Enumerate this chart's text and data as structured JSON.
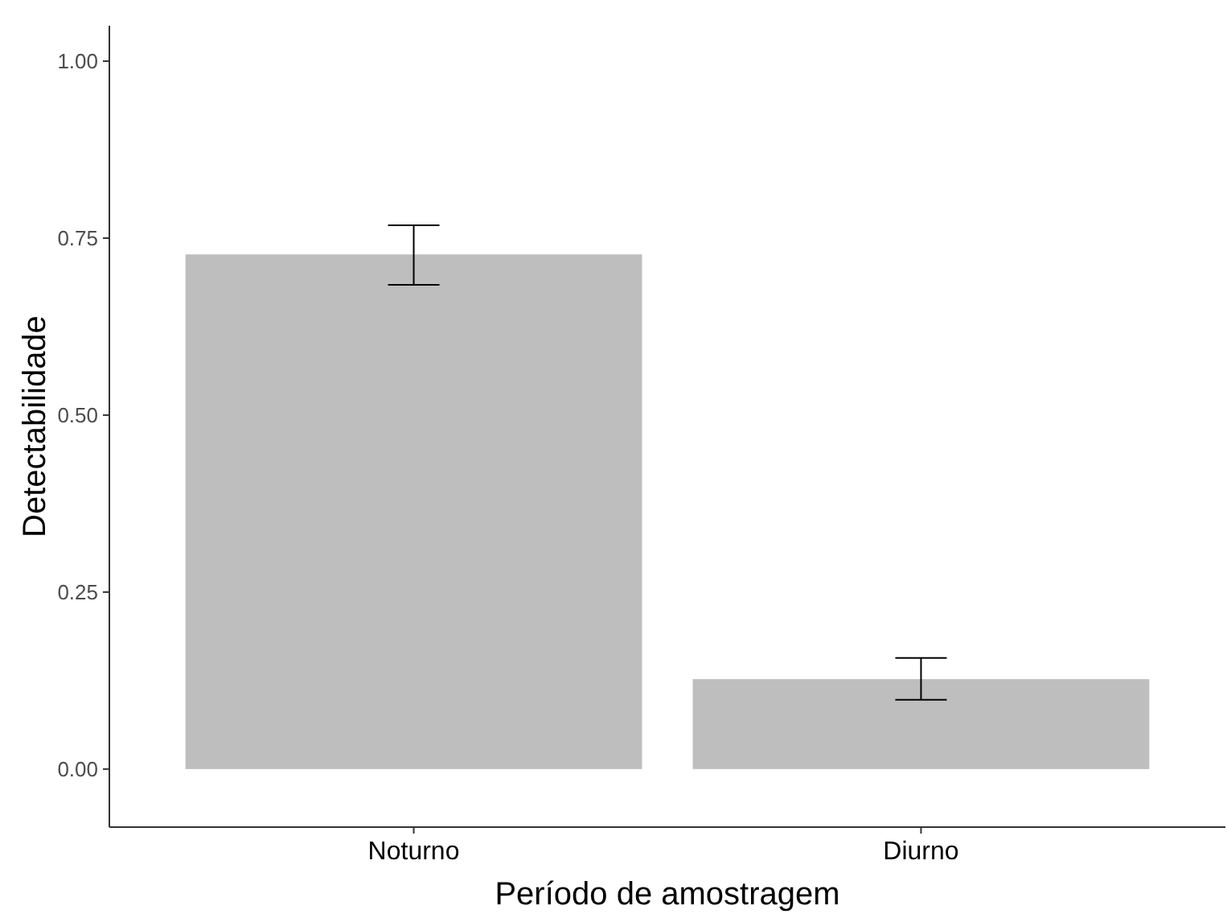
{
  "chart_data": {
    "type": "bar",
    "xlabel": "Período de amostragem",
    "ylabel": "Detectabilidade",
    "categories": [
      "Noturno",
      "Diurno"
    ],
    "values": [
      0.727,
      0.127
    ],
    "errors": [
      [
        0.684,
        0.768
      ],
      [
        0.098,
        0.157
      ]
    ],
    "color": "#bebebe",
    "ylim": [
      -0.082,
      1.05
    ],
    "yticks": [
      {
        "value": 0,
        "label": "0.00"
      },
      {
        "value": 0.25,
        "label": "0.25"
      },
      {
        "value": 0.5,
        "label": "0.50"
      },
      {
        "value": 0.75,
        "label": "0.75"
      },
      {
        "value": 1,
        "label": "1.00"
      }
    ],
    "grid": false
  }
}
